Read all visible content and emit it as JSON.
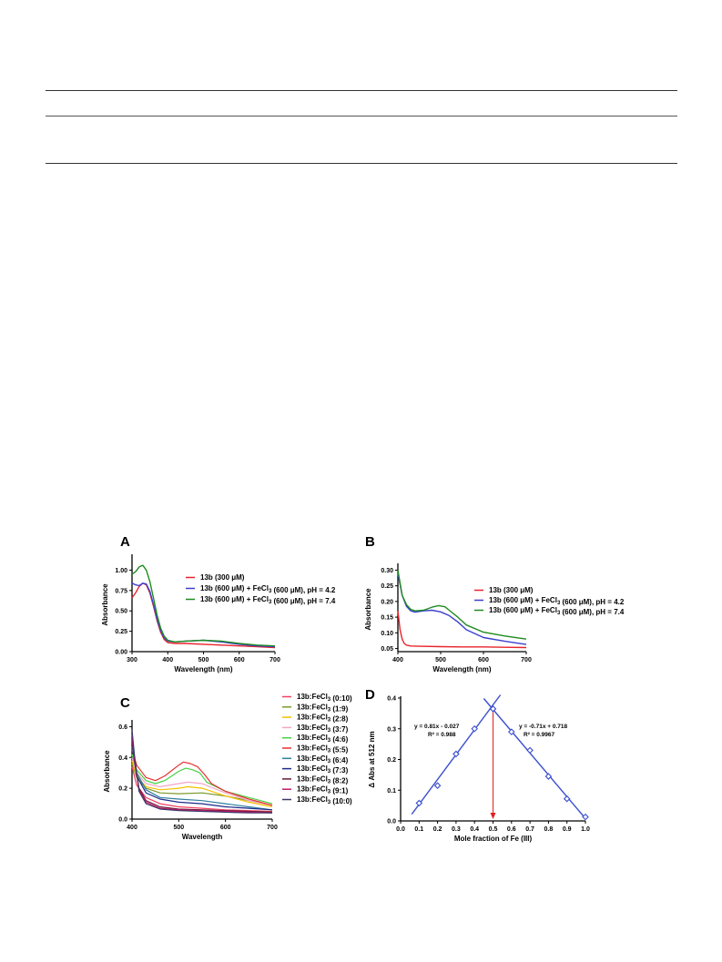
{
  "chart_data": [
    {
      "id": "A",
      "type": "line",
      "xlabel": "Wavelength (nm)",
      "ylabel": "Absorbance",
      "xlim": [
        300,
        700
      ],
      "ylim": [
        0,
        1.15
      ],
      "xticks": [
        300,
        400,
        500,
        600,
        700
      ],
      "yticks": [
        0.0,
        0.25,
        0.5,
        0.75,
        1.0
      ],
      "ytick_labels": [
        "0.00",
        "0.25",
        "0.50",
        "0.75",
        "1.00"
      ],
      "legend": "top-right",
      "series": [
        {
          "name": "13b (300 μM)",
          "color": "#e8242b",
          "x": [
            300,
            310,
            320,
            330,
            340,
            350,
            360,
            370,
            380,
            390,
            400,
            420,
            450,
            500,
            550,
            600,
            650,
            700
          ],
          "y": [
            0.66,
            0.72,
            0.8,
            0.84,
            0.82,
            0.72,
            0.56,
            0.38,
            0.24,
            0.15,
            0.11,
            0.1,
            0.1,
            0.09,
            0.08,
            0.07,
            0.06,
            0.05
          ]
        },
        {
          "name": "13b (600 μM) + FeCl3 (600 μM), pH = 4.2",
          "color": "#3b3fcf",
          "x": [
            300,
            310,
            320,
            330,
            340,
            350,
            360,
            370,
            380,
            390,
            400,
            420,
            450,
            500,
            550,
            600,
            650,
            700
          ],
          "y": [
            0.84,
            0.82,
            0.81,
            0.84,
            0.83,
            0.74,
            0.58,
            0.4,
            0.26,
            0.17,
            0.13,
            0.12,
            0.13,
            0.14,
            0.12,
            0.09,
            0.07,
            0.06
          ]
        },
        {
          "name": "13b (600 μM) + FeCl3 (600 μM), pH = 7.4",
          "color": "#1f8a1f",
          "x": [
            300,
            310,
            320,
            330,
            340,
            350,
            360,
            370,
            380,
            390,
            400,
            420,
            450,
            500,
            550,
            600,
            650,
            700
          ],
          "y": [
            0.95,
            0.98,
            1.04,
            1.06,
            1.0,
            0.86,
            0.66,
            0.45,
            0.29,
            0.19,
            0.14,
            0.12,
            0.13,
            0.14,
            0.13,
            0.1,
            0.08,
            0.07
          ]
        }
      ]
    },
    {
      "id": "B",
      "type": "line",
      "xlabel": "Wavelength (nm)",
      "ylabel": "Absorbance",
      "xlim": [
        400,
        700
      ],
      "ylim": [
        0.04,
        0.31
      ],
      "xticks": [
        400,
        500,
        600,
        700
      ],
      "yticks": [
        0.05,
        0.1,
        0.15,
        0.2,
        0.25,
        0.3
      ],
      "ytick_labels": [
        "0.05",
        "0.10",
        "0.15",
        "0.20",
        "0.25",
        "0.30"
      ],
      "legend": "right",
      "series": [
        {
          "name": "13b (300 μM)",
          "color": "#e8242b",
          "x": [
            400,
            405,
            410,
            415,
            420,
            430,
            450,
            500,
            550,
            600,
            650,
            700
          ],
          "y": [
            0.17,
            0.11,
            0.08,
            0.066,
            0.061,
            0.058,
            0.057,
            0.056,
            0.055,
            0.055,
            0.054,
            0.053
          ]
        },
        {
          "name": "13b (600 μM) + FeCl3 (600 μM), pH = 4.2",
          "color": "#3b3fcf",
          "x": [
            400,
            410,
            420,
            430,
            440,
            460,
            480,
            500,
            520,
            540,
            560,
            600,
            650,
            700
          ],
          "y": [
            0.29,
            0.22,
            0.185,
            0.17,
            0.166,
            0.17,
            0.172,
            0.167,
            0.155,
            0.135,
            0.11,
            0.085,
            0.073,
            0.063
          ]
        },
        {
          "name": "13b (600 μM) + FeCl3 (600 μM), pH = 7.4",
          "color": "#1f8a1f",
          "x": [
            400,
            410,
            420,
            430,
            440,
            460,
            480,
            495,
            510,
            520,
            540,
            560,
            600,
            650,
            700
          ],
          "y": [
            0.3,
            0.22,
            0.19,
            0.175,
            0.17,
            0.172,
            0.182,
            0.187,
            0.183,
            0.172,
            0.15,
            0.125,
            0.102,
            0.09,
            0.08
          ]
        }
      ]
    },
    {
      "id": "C",
      "type": "line",
      "xlabel": "Wavelength",
      "ylabel": "Absorbance",
      "xlim": [
        400,
        700
      ],
      "ylim": [
        0,
        0.62
      ],
      "xticks": [
        400,
        500,
        600,
        700
      ],
      "yticks": [
        0.0,
        0.2,
        0.4,
        0.6
      ],
      "ytick_labels": [
        "0.0",
        "0.2",
        "0.4",
        "0.6"
      ],
      "legend": "top-right",
      "series": [
        {
          "name": "13b:FeCl3 (0:10)",
          "color": "#f04060",
          "x": [
            400,
            410,
            430,
            460,
            500,
            550,
            600,
            650,
            700
          ],
          "y": [
            0.34,
            0.22,
            0.14,
            0.1,
            0.08,
            0.07,
            0.06,
            0.055,
            0.05
          ]
        },
        {
          "name": "13b:FeCl3 (1:9)",
          "color": "#7a9a2a",
          "x": [
            400,
            410,
            430,
            460,
            500,
            550,
            600,
            650,
            700
          ],
          "y": [
            0.36,
            0.27,
            0.2,
            0.17,
            0.165,
            0.17,
            0.15,
            0.12,
            0.09
          ]
        },
        {
          "name": "13b:FeCl3 (2:8)",
          "color": "#f5c000",
          "x": [
            400,
            410,
            430,
            460,
            500,
            520,
            550,
            600,
            650,
            700
          ],
          "y": [
            0.38,
            0.28,
            0.21,
            0.19,
            0.2,
            0.21,
            0.2,
            0.15,
            0.11,
            0.08
          ]
        },
        {
          "name": "13b:FeCl3 (3:7)",
          "color": "#f2a6c6",
          "x": [
            400,
            410,
            430,
            460,
            500,
            520,
            550,
            600,
            650,
            700
          ],
          "y": [
            0.4,
            0.3,
            0.23,
            0.21,
            0.23,
            0.24,
            0.23,
            0.17,
            0.12,
            0.09
          ]
        },
        {
          "name": "13b:FeCl3 (4:6)",
          "color": "#46d046",
          "x": [
            400,
            410,
            430,
            450,
            470,
            500,
            515,
            530,
            545,
            560,
            600,
            650,
            700
          ],
          "y": [
            0.42,
            0.32,
            0.25,
            0.23,
            0.25,
            0.31,
            0.33,
            0.32,
            0.3,
            0.24,
            0.18,
            0.14,
            0.1
          ]
        },
        {
          "name": "13b:FeCl3 (5:5)",
          "color": "#e83030",
          "x": [
            400,
            410,
            430,
            450,
            470,
            500,
            510,
            525,
            540,
            555,
            570,
            600,
            650,
            700
          ],
          "y": [
            0.45,
            0.35,
            0.27,
            0.25,
            0.28,
            0.35,
            0.37,
            0.36,
            0.34,
            0.29,
            0.23,
            0.18,
            0.13,
            0.09
          ]
        },
        {
          "name": "13b:FeCl3 (6:4)",
          "color": "#2f7fa0",
          "x": [
            400,
            410,
            430,
            460,
            500,
            550,
            600,
            650,
            700
          ],
          "y": [
            0.47,
            0.3,
            0.19,
            0.14,
            0.13,
            0.12,
            0.1,
            0.08,
            0.06
          ]
        },
        {
          "name": "13b:FeCl3 (7:3)",
          "color": "#1c2a8a",
          "x": [
            400,
            410,
            430,
            460,
            500,
            550,
            600,
            650,
            700
          ],
          "y": [
            0.5,
            0.28,
            0.17,
            0.13,
            0.11,
            0.1,
            0.08,
            0.07,
            0.06
          ]
        },
        {
          "name": "13b:FeCl3 (8:2)",
          "color": "#6a1a3a",
          "x": [
            400,
            405,
            415,
            430,
            460,
            500,
            550,
            600,
            650,
            700
          ],
          "y": [
            0.52,
            0.38,
            0.2,
            0.12,
            0.08,
            0.065,
            0.06,
            0.055,
            0.05,
            0.045
          ]
        },
        {
          "name": "13b:FeCl3 (9:1)",
          "color": "#c0186a",
          "x": [
            400,
            405,
            415,
            430,
            460,
            500,
            550,
            600,
            650,
            700
          ],
          "y": [
            0.55,
            0.4,
            0.19,
            0.11,
            0.07,
            0.06,
            0.055,
            0.05,
            0.045,
            0.04
          ]
        },
        {
          "name": "13b:FeCl3 (10:0)",
          "color": "#3a3a6a",
          "x": [
            400,
            405,
            415,
            430,
            460,
            500,
            550,
            600,
            650,
            700
          ],
          "y": [
            0.58,
            0.42,
            0.18,
            0.1,
            0.065,
            0.055,
            0.05,
            0.045,
            0.04,
            0.04
          ]
        }
      ]
    },
    {
      "id": "D",
      "type": "scatter",
      "xlabel": "Mole fraction of Fe (III)",
      "ylabel": "Δ Abs at 512 nm",
      "xlim": [
        0,
        1.0
      ],
      "ylim": [
        0,
        0.4
      ],
      "xticks": [
        0.0,
        0.1,
        0.2,
        0.3,
        0.4,
        0.5,
        0.6,
        0.7,
        0.8,
        0.9,
        1.0
      ],
      "xtick_labels": [
        "0.0",
        "0.1",
        "0.2",
        "0.3",
        "0.4",
        "0.5",
        "0.6",
        "0.7",
        "0.8",
        "0.9",
        "1.0"
      ],
      "yticks": [
        0.0,
        0.1,
        0.2,
        0.3,
        0.4
      ],
      "ytick_labels": [
        "0.0",
        "0.1",
        "0.2",
        "0.3",
        "0.4"
      ],
      "points": {
        "x": [
          0.1,
          0.2,
          0.3,
          0.4,
          0.5,
          0.6,
          0.7,
          0.8,
          0.9,
          1.0
        ],
        "y": [
          0.058,
          0.115,
          0.218,
          0.3,
          0.365,
          0.29,
          0.23,
          0.145,
          0.072,
          0.013
        ]
      },
      "fits": [
        {
          "slope": 0.81,
          "intercept": -0.027,
          "x_range": [
            0.06,
            0.54
          ],
          "equation": "y = 0.81x - 0.027",
          "r2": "R² = 0.988"
        },
        {
          "slope": -0.71,
          "intercept": 0.718,
          "x_range": [
            0.45,
            1.0
          ],
          "equation": "y = -0.71x + 0.718",
          "r2": "R² = 0.9967"
        }
      ],
      "arrow_x": 0.5,
      "colors": {
        "points": "#3b4fcf",
        "fit": "#3b4fcf",
        "arrow": "#e02020"
      }
    }
  ]
}
